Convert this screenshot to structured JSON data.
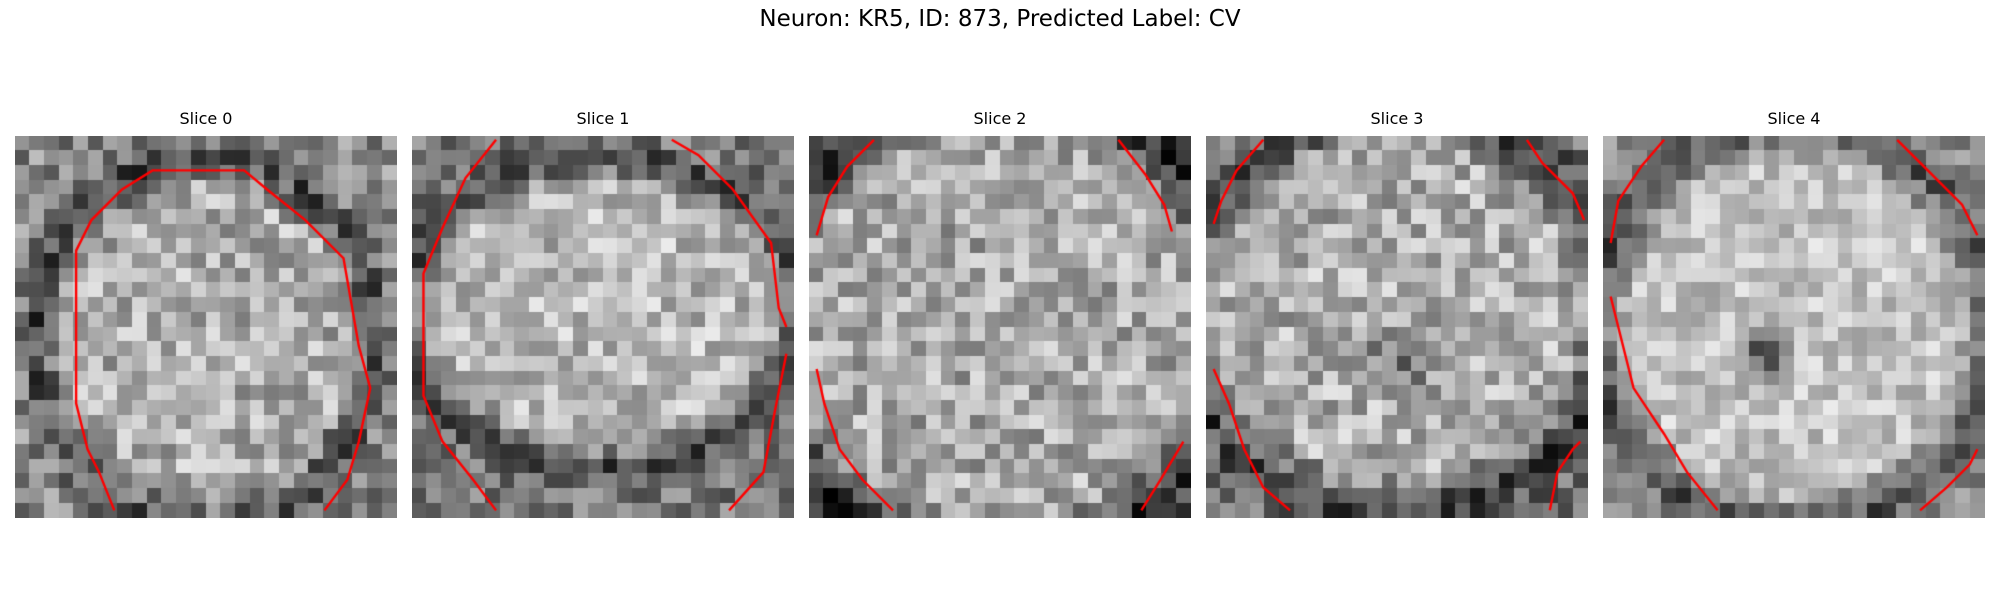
{
  "figure": {
    "title": "Neuron: KR5, ID: 873, Predicted Label: CV"
  },
  "panels": [
    {
      "title": "Slice 0"
    },
    {
      "title": "Slice 1"
    },
    {
      "title": "Slice 2"
    },
    {
      "title": "Slice 3"
    },
    {
      "title": "Slice 4"
    }
  ],
  "colors": {
    "contour": "#ff0000",
    "colormap": "gray"
  }
}
